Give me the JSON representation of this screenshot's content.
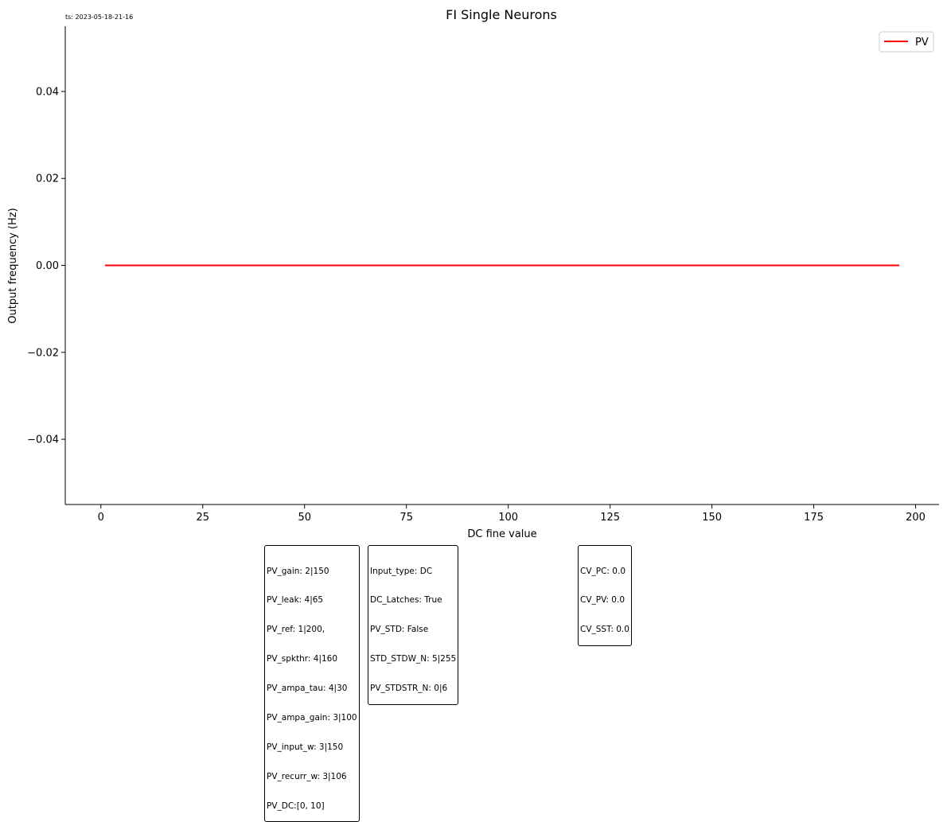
{
  "timestamp": "ts: 2023-05-18-21-16",
  "chart_data": {
    "type": "line",
    "title": "FI Single Neurons",
    "xlabel": "DC fine value",
    "ylabel": "Output frequency (Hz)",
    "xlim": [
      -8.75,
      205.75
    ],
    "ylim": [
      -0.055,
      0.055
    ],
    "xticks": [
      0,
      25,
      50,
      75,
      100,
      125,
      150,
      175,
      200
    ],
    "xtick_labels": [
      "0",
      "25",
      "50",
      "75",
      "100",
      "125",
      "150",
      "175",
      "200"
    ],
    "yticks": [
      -0.04,
      -0.02,
      0.0,
      0.02,
      0.04
    ],
    "ytick_labels": [
      "−0.04",
      "−0.02",
      "0.00",
      "0.02",
      "0.04"
    ],
    "legend_position": "upper-right",
    "series": [
      {
        "name": "PV",
        "color": "#ff0000",
        "x": [
          1,
          196
        ],
        "y": [
          0.0,
          0.0
        ]
      }
    ]
  },
  "param_boxes": [
    {
      "lines": [
        "PV_gain: 2|150",
        "PV_leak: 4|65",
        "PV_ref: 1|200,",
        "PV_spkthr: 4|160",
        "PV_ampa_tau: 4|30",
        "PV_ampa_gain: 3|100",
        "PV_input_w: 3|150",
        "PV_recurr_w: 3|106",
        "PV_DC:[0, 10]"
      ]
    },
    {
      "lines": [
        "Input_type: DC",
        "DC_Latches: True",
        "PV_STD: False",
        "STD_STDW_N: 5|255",
        "PV_STDSTR_N: 0|6"
      ]
    },
    {
      "lines": [
        "CV_PC: 0.0",
        "CV_PV: 0.0",
        "CV_SST: 0.0"
      ]
    }
  ]
}
